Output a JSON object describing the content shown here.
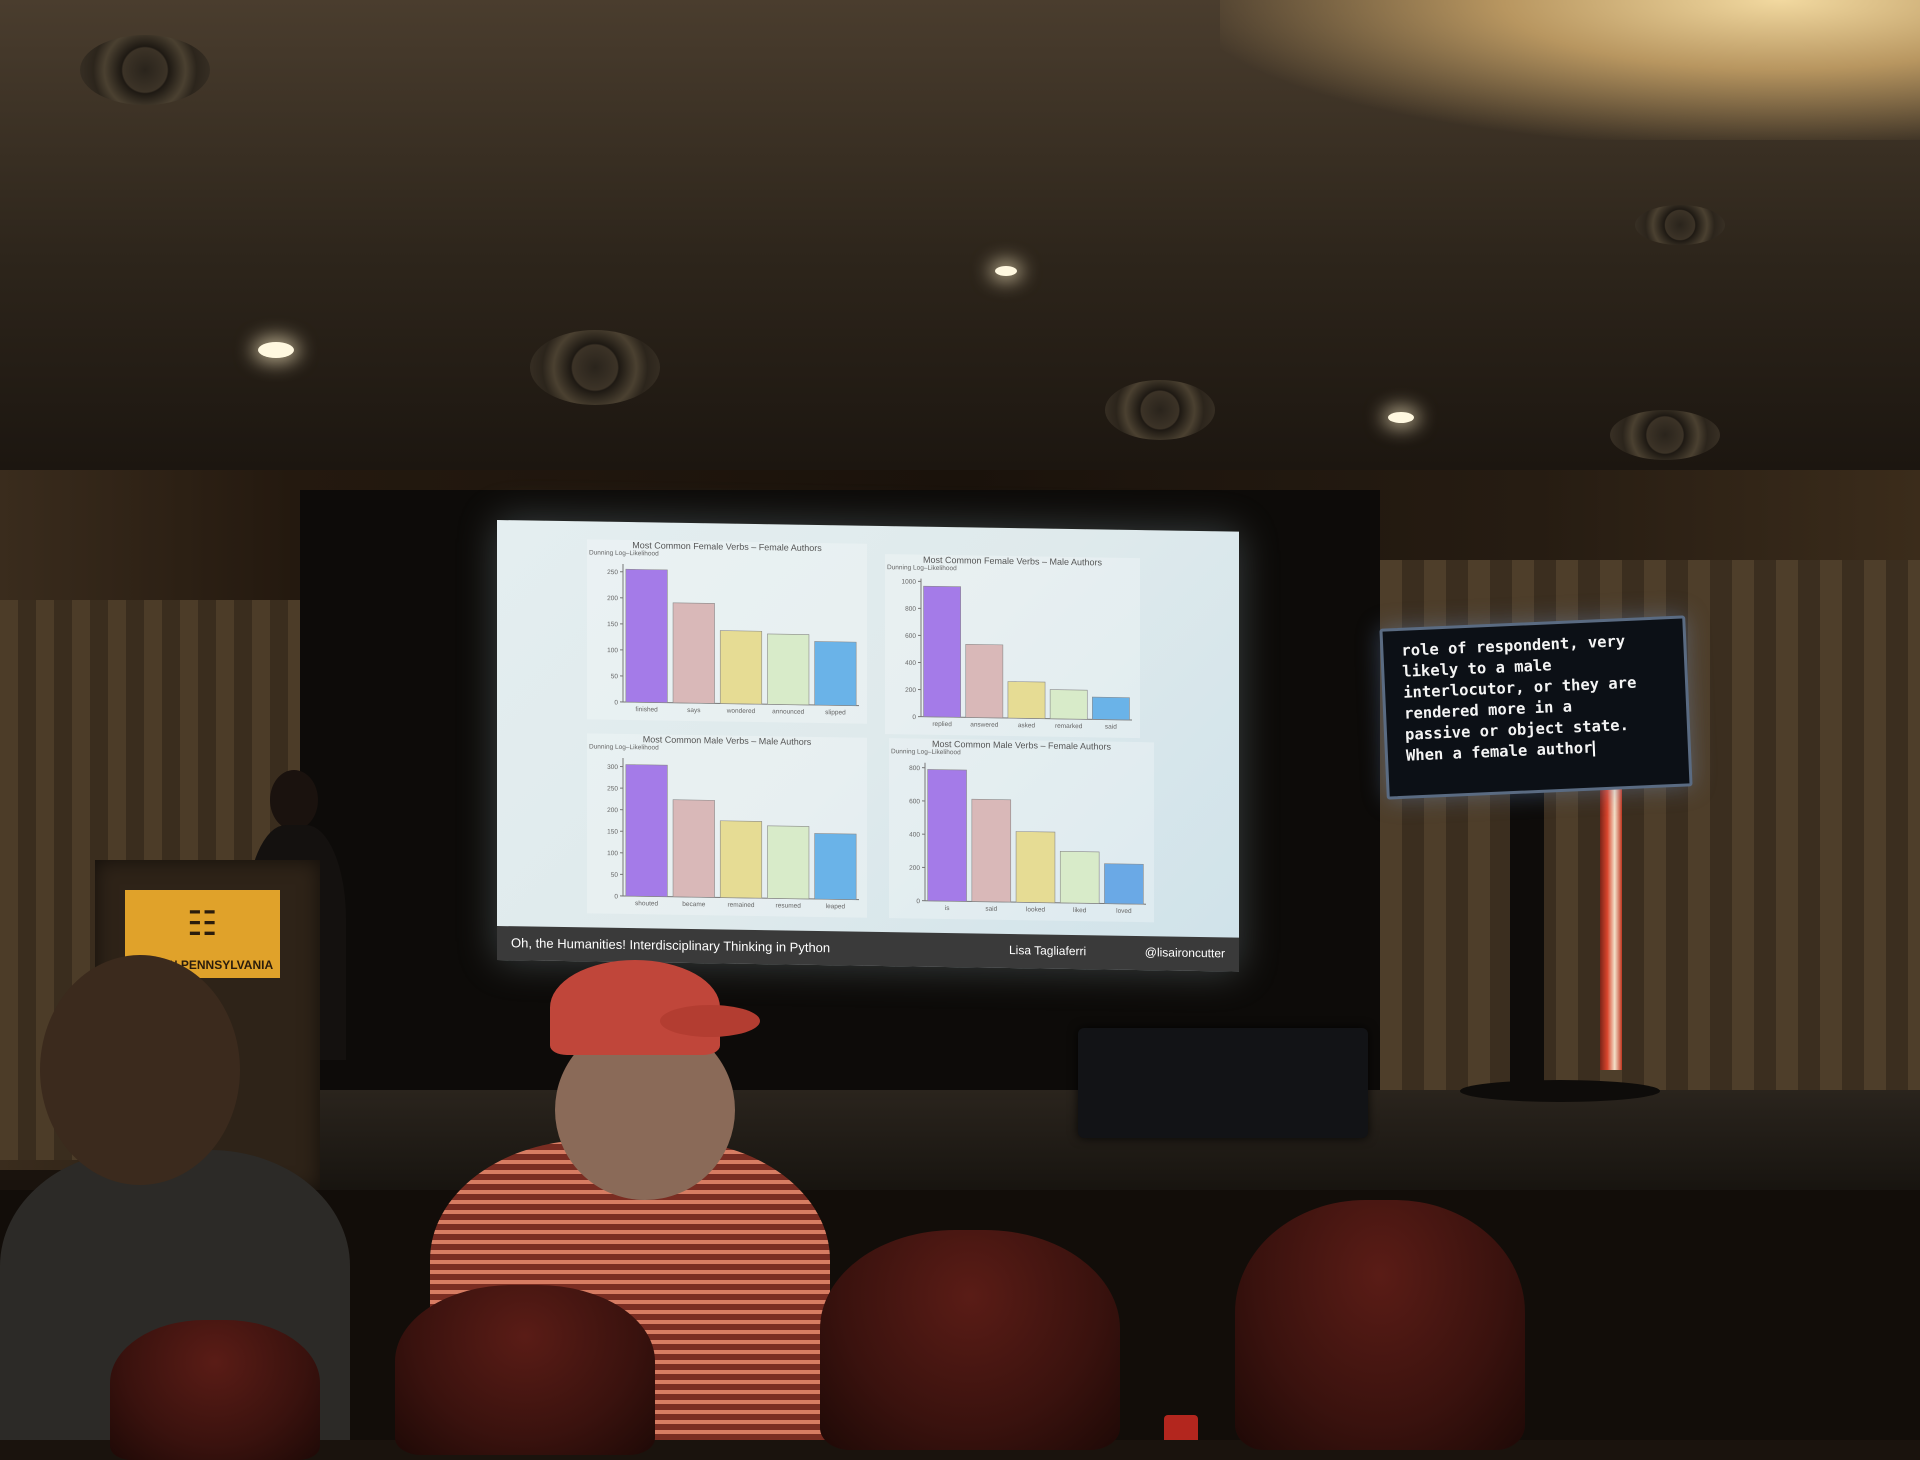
{
  "slide": {
    "caption_left": "Oh, the Humanities! Interdisciplinary Thinking in Python",
    "caption_speaker": "Lisa Tagliaferri",
    "caption_handle": "@lisaironcutter"
  },
  "podium_sign": "PYCON PENNSYLVANIA",
  "live_captions": [
    "role of respondent, very",
    "likely to a male",
    "interlocutor, or they are",
    "rendered more in a",
    "passive or object state.",
    "When a female author"
  ],
  "colors": {
    "bars": [
      "#a47be8",
      "#d9b8b8",
      "#e6dc94",
      "#d8ebc9",
      "#6ab3e8"
    ],
    "bars_alt": [
      "#a47be8",
      "#d9b8b8",
      "#e6dc94",
      "#d8ebc9",
      "#6aa9e6"
    ]
  },
  "chart_data": [
    {
      "type": "bar",
      "title": "Most Common Female Verbs – Female Authors",
      "ylabel": "Dunning Log–Likelihood",
      "categories": [
        "finished",
        "says",
        "wondered",
        "announced",
        "slipped"
      ],
      "values": [
        255,
        192,
        140,
        135,
        122
      ],
      "yticks": [
        0,
        50,
        100,
        150,
        200,
        250
      ],
      "ylim": [
        0,
        265
      ]
    },
    {
      "type": "bar",
      "title": "Most Common Female Verbs – Male Authors",
      "ylabel": "Dunning Log–Likelihood",
      "categories": [
        "replied",
        "answered",
        "asked",
        "remarked",
        "said"
      ],
      "values": [
        965,
        540,
        270,
        215,
        165
      ],
      "yticks": [
        0,
        200,
        400,
        600,
        800,
        1000
      ],
      "ylim": [
        0,
        1020
      ]
    },
    {
      "type": "bar",
      "title": "Most Common Male Verbs – Male Authors",
      "ylabel": "Dunning Log–Likelihood",
      "categories": [
        "shouted",
        "became",
        "remained",
        "resumed",
        "leaped"
      ],
      "values": [
        305,
        225,
        178,
        168,
        152
      ],
      "yticks": [
        0,
        50,
        100,
        150,
        200,
        250,
        300
      ],
      "ylim": [
        0,
        320
      ]
    },
    {
      "type": "bar",
      "title": "Most Common Male Verbs – Female Authors",
      "ylabel": "Dunning Log–Likelihood",
      "categories": [
        "is",
        "said",
        "looked",
        "liked",
        "loved"
      ],
      "values": [
        790,
        615,
        425,
        310,
        240
      ],
      "yticks": [
        0,
        200,
        400,
        600,
        800
      ],
      "ylim": [
        0,
        830
      ]
    }
  ]
}
